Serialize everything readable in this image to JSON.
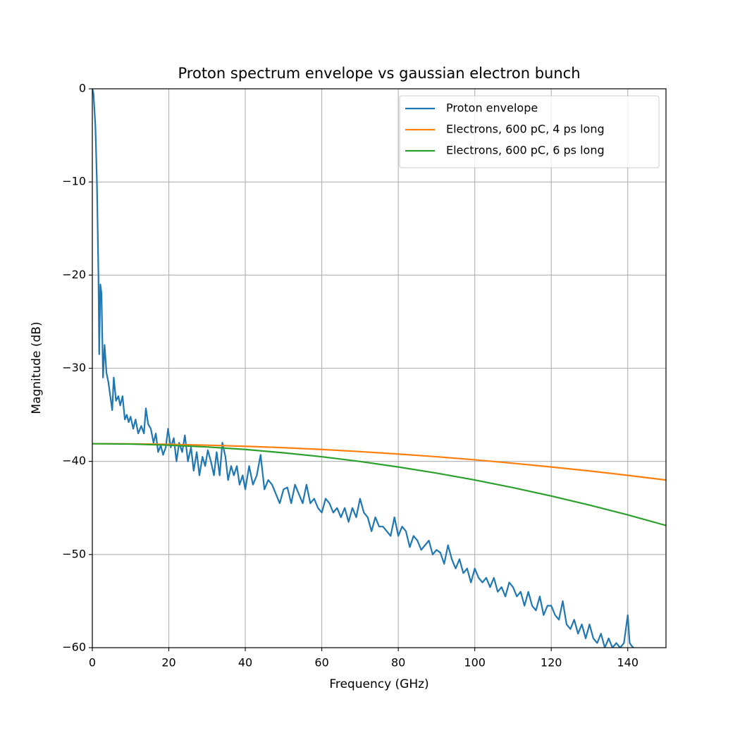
{
  "chart_data": {
    "type": "line",
    "title": "Proton spectrum envelope vs gaussian electron bunch",
    "x_label": "Frequency (GHz)",
    "y_label": "Magnitude (dB)",
    "xlim": [
      0,
      150
    ],
    "ylim": [
      -60,
      0
    ],
    "xticks": [
      0,
      20,
      40,
      60,
      80,
      100,
      120,
      140
    ],
    "yticks": [
      {
        "value": -60,
        "label": "−60"
      },
      {
        "value": -50,
        "label": "−50"
      },
      {
        "value": -40,
        "label": "−40"
      },
      {
        "value": -30,
        "label": "−30"
      },
      {
        "value": -20,
        "label": "−20"
      },
      {
        "value": -10,
        "label": "−10"
      },
      0
    ],
    "grid": true,
    "legend": "upper right",
    "series": [
      {
        "name": "Proton envelope",
        "color": "#1f77b4",
        "x": [
          0,
          0.3,
          0.8,
          1.2,
          1.6,
          1.8,
          2.1,
          2.4,
          2.8,
          3.2,
          3.7,
          4.2,
          4.7,
          5.2,
          5.6,
          6.2,
          6.8,
          7.3,
          7.9,
          8.5,
          9,
          9.5,
          10,
          10.7,
          11.3,
          12,
          12.8,
          13.5,
          14,
          14.6,
          15.3,
          16,
          16.6,
          17.2,
          17.9,
          18.5,
          19.2,
          19.8,
          20.5,
          21.3,
          22,
          22.7,
          23.5,
          24.2,
          25,
          25.8,
          26.5,
          27.3,
          28,
          28.8,
          29.5,
          30.2,
          31,
          31.8,
          32.5,
          33.3,
          34,
          34.8,
          35.5,
          36.3,
          37,
          37.8,
          38.5,
          39.3,
          40,
          41,
          42,
          43,
          44,
          45,
          46,
          47,
          48,
          49,
          50,
          51,
          52,
          53,
          54,
          55,
          56,
          57,
          58,
          59,
          60,
          61,
          62,
          63,
          64,
          65,
          66,
          67,
          68,
          69,
          70,
          71,
          72,
          73,
          74,
          75,
          76,
          77,
          78,
          79,
          80,
          81,
          82,
          83,
          84,
          85,
          86,
          87,
          88,
          89,
          90,
          91,
          92,
          93,
          94,
          95,
          96,
          97,
          98,
          99,
          100,
          101,
          102,
          103,
          104,
          105,
          106,
          107,
          108,
          109,
          110,
          111,
          112,
          113,
          114,
          115,
          116,
          117,
          118,
          119,
          120,
          121,
          122,
          123,
          124,
          125,
          126,
          127,
          128,
          129,
          130,
          131,
          132,
          133,
          134,
          135,
          136,
          137,
          138,
          139,
          140,
          140.5,
          141,
          141.5
        ],
        "values": [
          0,
          -0.5,
          -4,
          -10,
          -20,
          -28.5,
          -21,
          -22,
          -31,
          -27.5,
          -30.5,
          -31.5,
          -33,
          -34.5,
          -31,
          -33.5,
          -33,
          -34,
          -33,
          -35.5,
          -35,
          -35.8,
          -35.2,
          -36.5,
          -35.5,
          -37,
          -36.2,
          -37,
          -34.3,
          -36,
          -36.5,
          -38,
          -37,
          -39,
          -38.3,
          -39.3,
          -38.5,
          -36.5,
          -38.5,
          -37.5,
          -40,
          -38,
          -39,
          -37.2,
          -40,
          -38.5,
          -41,
          -39,
          -41.5,
          -39.5,
          -40.5,
          -38.8,
          -40,
          -41.5,
          -39,
          -41.5,
          -38,
          -39.5,
          -42,
          -40.5,
          -41.5,
          -40.5,
          -42.5,
          -41.5,
          -43,
          -40.5,
          -42.5,
          -41.5,
          -39.3,
          -43,
          -42,
          -42.5,
          -43.5,
          -44.5,
          -43,
          -42.8,
          -44.5,
          -42.5,
          -43.5,
          -44.5,
          -42.5,
          -44.5,
          -44,
          -45,
          -45.5,
          -44,
          -44.5,
          -45.5,
          -45,
          -46,
          -45,
          -46.5,
          -45,
          -46,
          -44,
          -45.5,
          -46,
          -47.5,
          -46,
          -47,
          -47,
          -47.5,
          -48,
          -46,
          -48,
          -47,
          -47.5,
          -49.2,
          -48,
          -48.5,
          -49.5,
          -49,
          -48.5,
          -50,
          -49.5,
          -49.8,
          -51,
          -49,
          -50.5,
          -51.5,
          -50.5,
          -52,
          -51.5,
          -53,
          -51.5,
          -52.5,
          -53,
          -52.5,
          -53.5,
          -52.5,
          -54,
          -53.5,
          -54.5,
          -53,
          -53.5,
          -54.5,
          -54,
          -55.5,
          -54,
          -55.5,
          -56,
          -54.5,
          -56.5,
          -55.5,
          -55.5,
          -56.5,
          -57,
          -55,
          -57.5,
          -58,
          -57,
          -58.5,
          -57.5,
          -59,
          -57.5,
          -59,
          -59.5,
          -58.5,
          -60,
          -59,
          -60,
          -59.5,
          -60,
          -59.5,
          -56.5,
          -59.5,
          -59.8,
          -60
        ]
      },
      {
        "name": "Electrons, 600 pC, 4 ps long",
        "color": "#ff7f0e",
        "x": [
          0,
          10,
          20,
          30,
          40,
          50,
          60,
          70,
          80,
          90,
          100,
          110,
          120,
          130,
          140,
          150
        ],
        "values": [
          -38.1,
          -38.12,
          -38.17,
          -38.26,
          -38.38,
          -38.53,
          -38.72,
          -38.95,
          -39.21,
          -39.5,
          -39.83,
          -40.2,
          -40.6,
          -41.03,
          -41.5,
          -42.0
        ]
      },
      {
        "name": "Electrons, 600 pC, 6 ps long",
        "color": "#2ca02c",
        "x": [
          0,
          10,
          20,
          30,
          40,
          50,
          60,
          70,
          80,
          90,
          100,
          110,
          120,
          130,
          140,
          150
        ],
        "values": [
          -38.1,
          -38.14,
          -38.26,
          -38.45,
          -38.72,
          -39.08,
          -39.5,
          -40.01,
          -40.6,
          -41.26,
          -42.0,
          -42.82,
          -43.72,
          -44.69,
          -45.74,
          -46.88
        ]
      }
    ]
  }
}
